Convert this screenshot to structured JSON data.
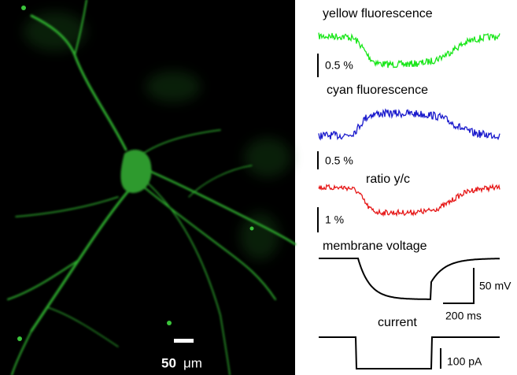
{
  "image": {
    "scale_bar_number": "50",
    "scale_bar_unit": "μm"
  },
  "traces": [
    {
      "title": "yellow fluorescence",
      "scale_label": "0.5 %"
    },
    {
      "title": "cyan fluorescence",
      "scale_label": "0.5 %"
    },
    {
      "title": "ratio y/c",
      "scale_label": "1 %"
    },
    {
      "title": "membrane voltage",
      "scale_label": "50 mV",
      "time_label": "200 ms"
    },
    {
      "title": "current",
      "scale_label": "100 pA"
    }
  ]
}
